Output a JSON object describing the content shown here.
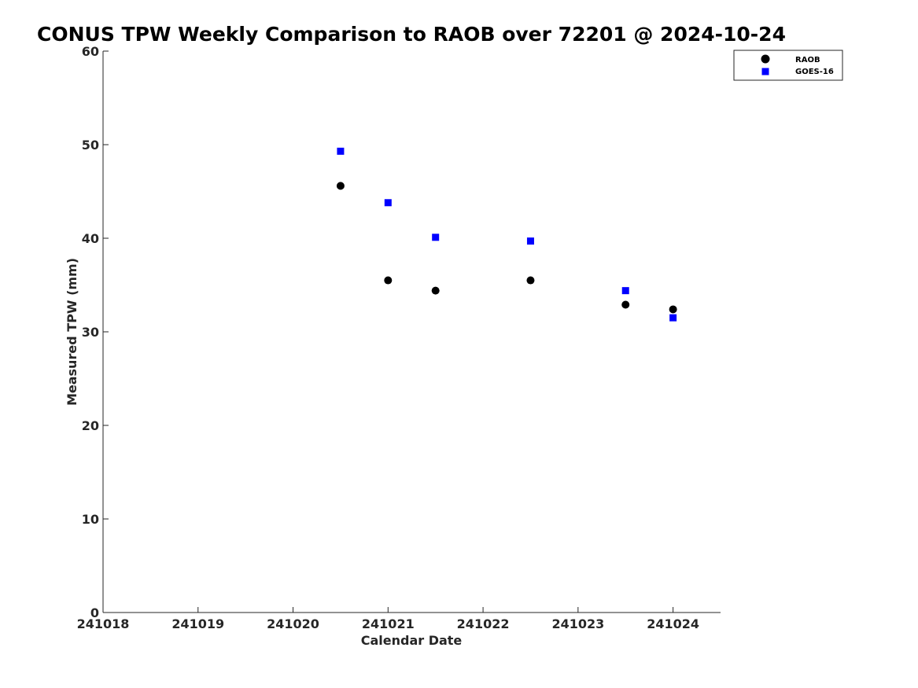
{
  "chart_data": {
    "type": "scatter",
    "title": "CONUS TPW Weekly Comparison to RAOB over 72201 @ 2024-10-24",
    "xlabel": "Calendar Date",
    "ylabel": "Measured TPW (mm)",
    "x_tick_labels": [
      "241018",
      "241019",
      "241020",
      "241021",
      "241022",
      "241023",
      "241024"
    ],
    "x_tick_values": [
      0,
      1,
      2,
      3,
      4,
      5,
      6
    ],
    "xlim": [
      0,
      6.5
    ],
    "y_ticks": [
      0,
      10,
      20,
      30,
      40,
      50,
      60
    ],
    "ylim": [
      0,
      60
    ],
    "grid": false,
    "legend_position": "top-right, outside plot area",
    "series": [
      {
        "name": "RAOB",
        "marker": "circle",
        "color": "#000000",
        "points": [
          {
            "x": "241020.5",
            "y": 45.6
          },
          {
            "x": "241021.0",
            "y": 35.5
          },
          {
            "x": "241021.5",
            "y": 34.4
          },
          {
            "x": "241022.5",
            "y": 35.5
          },
          {
            "x": "241023.5",
            "y": 32.9
          },
          {
            "x": "241024.0",
            "y": 32.4
          }
        ]
      },
      {
        "name": "GOES-16",
        "marker": "square",
        "color": "#0000ff",
        "points": [
          {
            "x": "241020.5",
            "y": 49.3
          },
          {
            "x": "241021.0",
            "y": 43.8
          },
          {
            "x": "241021.5",
            "y": 40.1
          },
          {
            "x": "241022.5",
            "y": 39.7
          },
          {
            "x": "241023.5",
            "y": 34.4
          },
          {
            "x": "241024.0",
            "y": 31.5
          }
        ]
      }
    ]
  }
}
